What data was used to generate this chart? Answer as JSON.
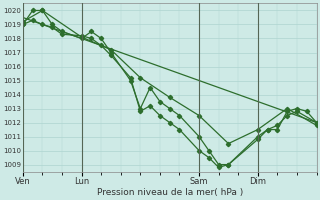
{
  "xlabel": "Pression niveau de la mer( hPa )",
  "bg_color": "#ceeae6",
  "grid_color": "#aed4d0",
  "line_color": "#2d6e2d",
  "marker_color": "#2d6e2d",
  "ylim": [
    1008.5,
    1020.5
  ],
  "yticks": [
    1009,
    1010,
    1011,
    1012,
    1013,
    1014,
    1015,
    1016,
    1017,
    1018,
    1019,
    1020
  ],
  "xtick_labels": [
    "Ven",
    "Lun",
    "Sam",
    "Dim"
  ],
  "xtick_positions": [
    0,
    30,
    90,
    120
  ],
  "total_hours": 150,
  "vline_color": "#556655",
  "series1": [
    [
      0,
      1019.0
    ],
    [
      5,
      1020.0
    ],
    [
      10,
      1020.0
    ],
    [
      15,
      1019.0
    ],
    [
      20,
      1018.5
    ],
    [
      30,
      1018.0
    ],
    [
      35,
      1018.5
    ],
    [
      40,
      1018.0
    ],
    [
      45,
      1017.0
    ],
    [
      55,
      1015.0
    ],
    [
      60,
      1013.0
    ],
    [
      65,
      1014.5
    ],
    [
      70,
      1013.5
    ],
    [
      75,
      1013.0
    ],
    [
      80,
      1012.5
    ],
    [
      90,
      1011.0
    ],
    [
      95,
      1010.0
    ],
    [
      100,
      1009.0
    ],
    [
      105,
      1009.0
    ],
    [
      120,
      1011.0
    ],
    [
      125,
      1011.5
    ],
    [
      130,
      1011.5
    ],
    [
      135,
      1012.8
    ],
    [
      140,
      1013.0
    ],
    [
      145,
      1012.8
    ],
    [
      150,
      1012.0
    ]
  ],
  "series2": [
    [
      0,
      1019.0
    ],
    [
      5,
      1019.3
    ],
    [
      10,
      1019.0
    ],
    [
      15,
      1018.8
    ],
    [
      20,
      1018.3
    ],
    [
      30,
      1018.2
    ],
    [
      35,
      1018.0
    ],
    [
      40,
      1017.5
    ],
    [
      45,
      1016.8
    ],
    [
      55,
      1015.2
    ],
    [
      60,
      1012.8
    ],
    [
      65,
      1013.2
    ],
    [
      70,
      1012.5
    ],
    [
      75,
      1012.0
    ],
    [
      80,
      1011.5
    ],
    [
      90,
      1010.0
    ],
    [
      95,
      1009.5
    ],
    [
      100,
      1008.8
    ],
    [
      105,
      1009.0
    ],
    [
      120,
      1010.8
    ],
    [
      125,
      1011.5
    ],
    [
      130,
      1011.8
    ],
    [
      135,
      1012.5
    ],
    [
      140,
      1012.8
    ],
    [
      150,
      1012.0
    ]
  ],
  "series3": [
    [
      0,
      1019.2
    ],
    [
      10,
      1020.0
    ],
    [
      30,
      1018.1
    ],
    [
      45,
      1017.2
    ],
    [
      60,
      1015.2
    ],
    [
      75,
      1013.8
    ],
    [
      90,
      1012.5
    ],
    [
      105,
      1010.5
    ],
    [
      120,
      1011.5
    ],
    [
      135,
      1013.0
    ],
    [
      150,
      1011.8
    ]
  ],
  "series4_linear": [
    [
      0,
      1019.5
    ],
    [
      150,
      1012.0
    ]
  ]
}
